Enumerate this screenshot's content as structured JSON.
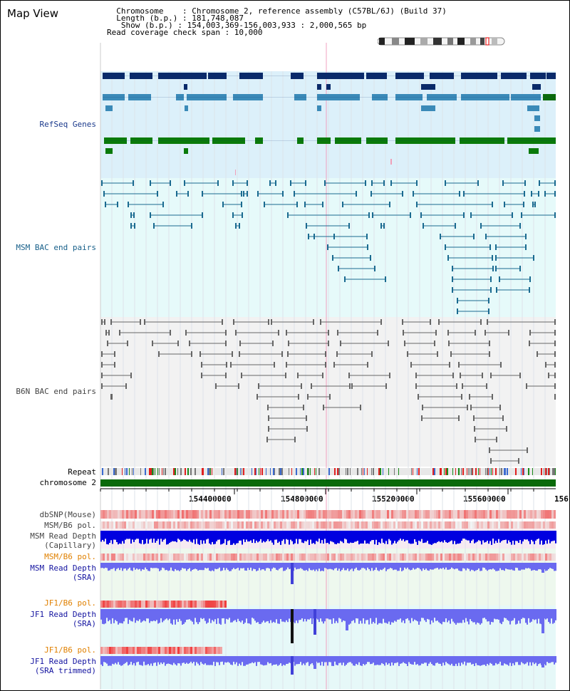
{
  "header": {
    "title": "Map View",
    "info_lines": [
      "  Chromosome    : Chromosome 2, reference assembly (C57BL/6J) (Build 37)",
      "  Length (b.p.) : 181,748,087",
      "   Show (b.p.) : 154,003,369-156,003,933 : 2,000,565 bp",
      "Read coverage check span : 10,000"
    ]
  },
  "tracks": {
    "refseq": "RefSeq Genes",
    "msm_bac": "MSM BAC end pairs",
    "b6n_bac": "B6N BAC end pairs",
    "repeat": "Repeat",
    "chromosome": "chromosome 2",
    "dbsnp": "dbSNP(Mouse)",
    "msm_b6_pol_1": "MSM/B6 pol.",
    "msm_read_depth_cap_1": "MSM Read Depth",
    "msm_read_depth_cap_2": "(Capillary)",
    "msm_b6_pol_2": "MSM/B6 pol.",
    "msm_read_depth_sra_1": "MSM Read Depth",
    "msm_read_depth_sra_2": "(SRA)",
    "jf1_b6_pol_1": "JF1/B6 pol.",
    "jf1_read_depth_1": "JF1 Read Depth",
    "jf1_read_depth_2": "(SRA)",
    "jf1_b6_pol_2": "JF1/B6 pol.",
    "jf1_read_depth_trim_1": "JF1 Read Depth",
    "jf1_read_depth_trim_2": "(SRA trimmed)"
  },
  "ruler": {
    "ticks": [
      "154400000",
      "154800000",
      "155200000",
      "155600000",
      "156"
    ]
  },
  "colors": {
    "refseq_bg": "#dcf0fa",
    "msm_bac_bg": "#e6fafa",
    "b6n_bac_bg": "#f2f2f2",
    "gene_dark": "#0a2a6a",
    "gene_mid": "#3a8ab8",
    "gene_green": "#0a7a0a",
    "bac_teal": "#1a6a90",
    "bac_gray": "#666666",
    "snp_red": "#f08080",
    "depth_blue": "#0000e0",
    "depth_light": "#6a6af0",
    "chrom_green": "#0a6a0a"
  }
}
